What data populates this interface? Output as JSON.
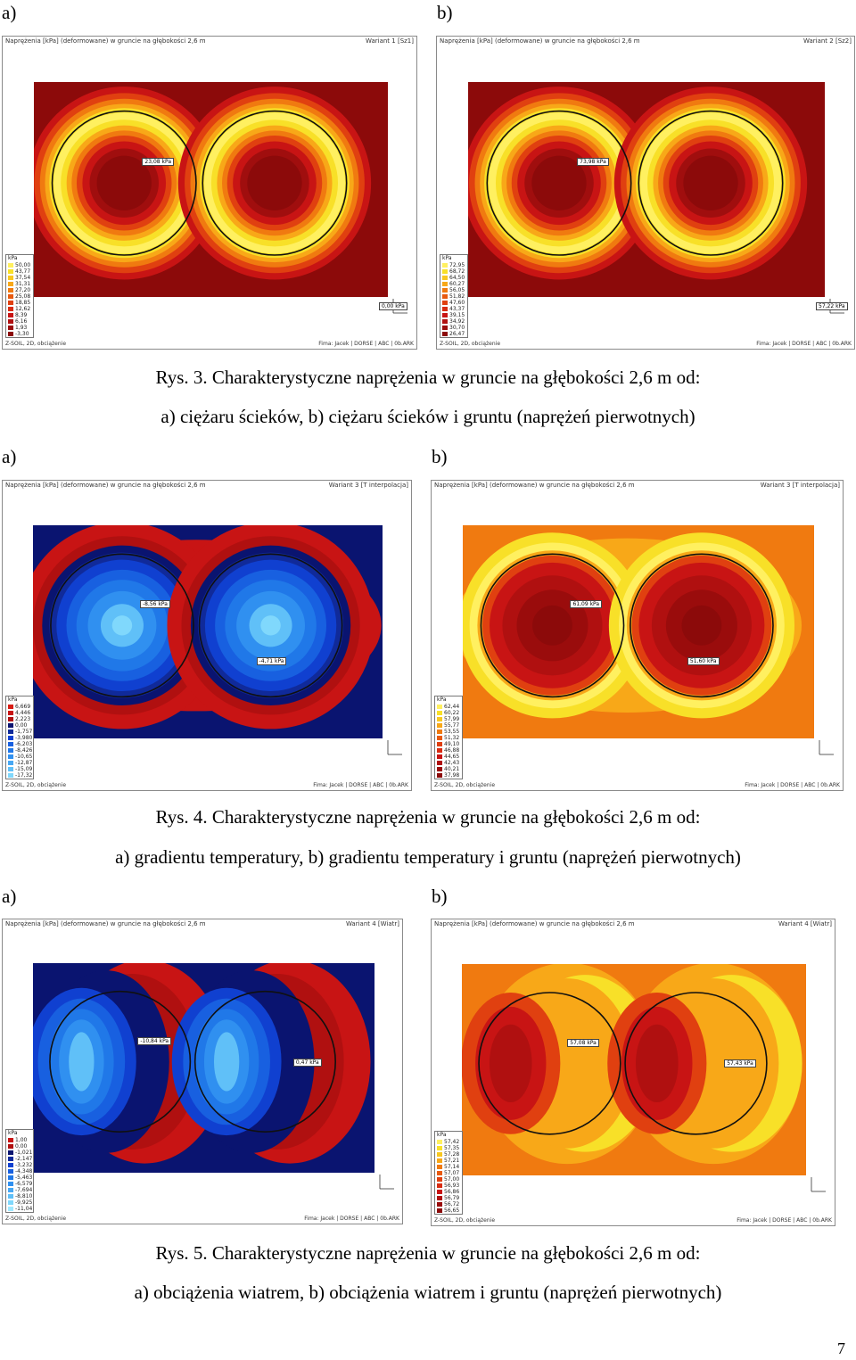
{
  "figures": [
    {
      "labels": [
        "a)",
        "b)"
      ],
      "caption_line1": "Rys. 3. Charakterystyczne naprężenia w gruncie na głębokości 2,6 m od:",
      "caption_line2": "a) ciężaru ścieków, b) ciężaru ścieków i gruntu (naprężeń pierwotnych)",
      "panels": [
        {
          "header_left": "Naprężenia [kPa] (deformowane) w gruncie na głębokości 2,6 m",
          "header_right": "Wariant 1 [Sz1]",
          "footer_left": "Z-SOIL, 2D, obciążenie",
          "footer_right": "Fima: Jacek | DORSE | ABC | 0b.ARK",
          "unit": "kPa",
          "legend_values": [
            "50,00",
            "43,77",
            "37,54",
            "31,31",
            "27,20",
            "25,08",
            "18,85",
            "12,62",
            "8,39",
            "6,16",
            "1,93",
            "-3,30"
          ],
          "tags": [
            "23,08 kPa",
            "0,00 kPa"
          ],
          "scheme": "rings-red"
        },
        {
          "header_left": "Naprężenia [kPa] (deformowane) w gruncie na głębokości 2,6 m",
          "header_right": "Wariant 2 [Sz2]",
          "footer_left": "Z-SOIL, 2D, obciążenie",
          "footer_right": "Fima: Jacek | DORSE | ABC | 0b.ARK",
          "unit": "kPa",
          "legend_values": [
            "72,95",
            "68,72",
            "64,50",
            "60,27",
            "56,05",
            "51,82",
            "47,60",
            "43,37",
            "39,15",
            "34,92",
            "30,70",
            "26,47"
          ],
          "tags": [
            "73,98 kPa",
            "57,22 kPa"
          ],
          "scheme": "rings-red"
        }
      ]
    },
    {
      "labels": [
        "a)",
        "b)"
      ],
      "caption_line1": "Rys. 4. Charakterystyczne naprężenia w gruncie na głębokości 2,6 m od:",
      "caption_line2": "a) gradientu temperatury, b) gradientu temperatury i gruntu (naprężeń pierwotnych)",
      "panels": [
        {
          "header_left": "Naprężenia [kPa] (deformowane) w gruncie na głębokości 2,6 m",
          "header_right": "Wariant 3 [T interpolacja]",
          "footer_left": "Z-SOIL, 2D, obciążenie",
          "footer_right": "Fima: Jacek | DORSE | ABC | 0b.ARK",
          "unit": "kPa",
          "legend_values": [
            "6,669",
            "4,446",
            "2,223",
            "0,00",
            "-1,757",
            "-3,980",
            "-6,203",
            "-8,426",
            "-10,65",
            "-12,87",
            "-15,09",
            "-17,32"
          ],
          "tags": [
            "-8,56 kPa",
            "-4,71 kPa"
          ],
          "scheme": "blue-core"
        },
        {
          "header_left": "Naprężenia [kPa] (deformowane) w gruncie na głębokości 2,6 m",
          "header_right": "Wariant 3 [T interpolacja]",
          "footer_left": "Z-SOIL, 2D, obciążenie",
          "footer_right": "Fima: Jacek | DORSE | ABC | 0b.ARK",
          "unit": "kPa",
          "legend_values": [
            "62,44",
            "60,22",
            "57,99",
            "55,77",
            "53,55",
            "51,32",
            "49,10",
            "46,88",
            "44,65",
            "42,43",
            "40,21",
            "37,98"
          ],
          "tags": [
            "61,09 kPa",
            "51,60 kPa"
          ],
          "scheme": "red-core"
        }
      ]
    },
    {
      "labels": [
        "a)",
        "b)"
      ],
      "caption_line1": "Rys. 5. Charakterystyczne naprężenia w gruncie na głębokości 2,6 m od:",
      "caption_line2": "a) obciążenia wiatrem, b) obciążenia wiatrem i gruntu (naprężeń pierwotnych)",
      "panels": [
        {
          "header_left": "Naprężenia [kPa] (deformowane) w gruncie na głębokości 2,6 m",
          "header_right": "Wariant 4 [Wiatr]",
          "footer_left": "Z-SOIL, 2D, obciążenie",
          "footer_right": "Fima: Jacek | DORSE | ABC | 0b.ARK",
          "unit": "kPa",
          "legend_values": [
            "1,00",
            "0,00",
            "-1,021",
            "-2,147",
            "-3,232",
            "-4,348",
            "-5,463",
            "-6,579",
            "-7,694",
            "-8,810",
            "-9,925",
            "-11,04"
          ],
          "tags": [
            "-10,84 kPa",
            "0,47 kPa"
          ],
          "scheme": "wind-blue"
        },
        {
          "header_left": "Naprężenia [kPa] (deformowane) w gruncie na głębokości 2,6 m",
          "header_right": "Wariant 4 [Wiatr]",
          "footer_left": "Z-SOIL, 2D, obciążenie",
          "footer_right": "Fima: Jacek | DORSE | ABC | 0b.ARK",
          "unit": "kPa",
          "legend_values": [
            "57,42",
            "57,35",
            "57,28",
            "57,21",
            "57,14",
            "57,07",
            "57,00",
            "56,93",
            "56,86",
            "56,79",
            "56,72",
            "56,65"
          ],
          "tags": [
            "57,08 kPa",
            "57,43 kPa"
          ],
          "scheme": "wind-orange"
        }
      ]
    }
  ],
  "page_number": "7",
  "colors": {
    "dark_red": "#8c0a0a",
    "red": "#c81414",
    "orange_red": "#e04010",
    "orange": "#f07a10",
    "amber": "#f8a818",
    "yellow": "#f8e028",
    "light_yellow": "#fff060",
    "navy": "#0a1470",
    "blue": "#1040d0",
    "light_blue": "#3090f0",
    "ring": "#101010"
  }
}
